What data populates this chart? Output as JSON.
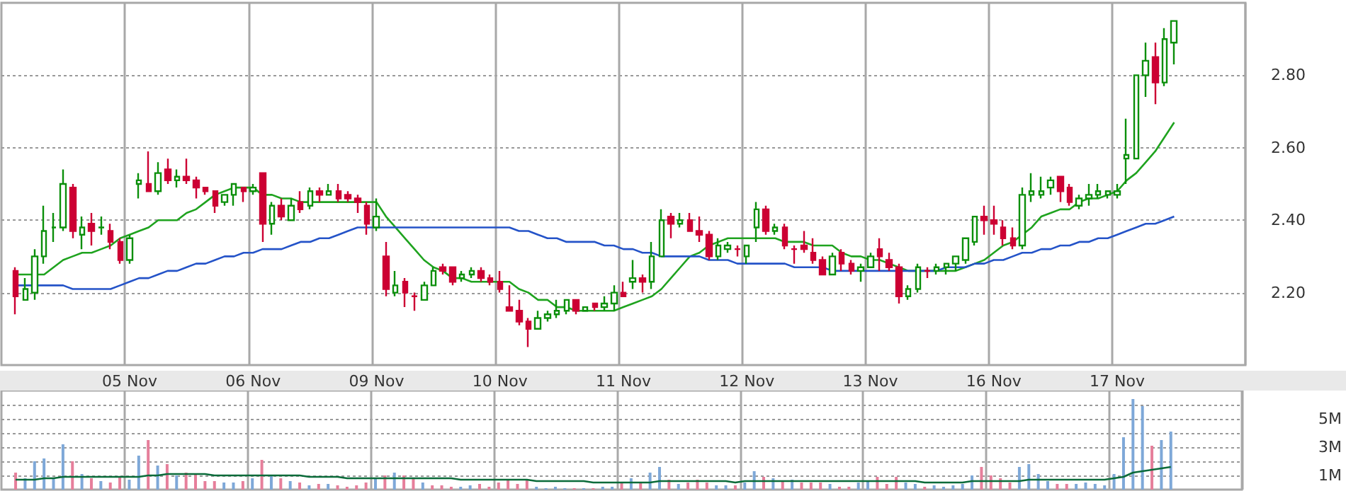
{
  "chart_data": [
    {
      "type": "candlestick",
      "categories": [
        null,
        null,
        null,
        null,
        null,
        null,
        null,
        null,
        null,
        null,
        null,
        null,
        null,
        "05 Nov",
        null,
        null,
        null,
        null,
        null,
        null,
        null,
        null,
        null,
        null,
        null,
        null,
        "06 Nov",
        null,
        null,
        null,
        null,
        null,
        null,
        null,
        null,
        null,
        null,
        null,
        null,
        "09 Nov",
        null,
        null,
        null,
        null,
        null,
        null,
        null,
        null,
        null,
        null,
        null,
        null,
        "10 Nov",
        null,
        null,
        null,
        null,
        null,
        null,
        null,
        null,
        null,
        null,
        null,
        null,
        "11 Nov",
        null,
        null,
        null,
        null,
        null,
        null,
        null,
        null,
        null,
        null,
        null,
        null,
        "12 Nov",
        null,
        null,
        null,
        null,
        null,
        null,
        null,
        null,
        null,
        null,
        null,
        null,
        "13 Nov",
        null,
        null,
        null,
        null,
        null,
        null,
        null,
        null,
        null,
        null,
        null,
        null,
        "16 Nov",
        null,
        null,
        null,
        null,
        null,
        null,
        null,
        null,
        null,
        null,
        null,
        null,
        "17 Nov",
        null,
        null,
        null,
        null,
        null,
        null,
        null,
        null,
        null,
        null,
        null,
        null,
        null
      ],
      "ohlc": [
        null,
        [
          2.26,
          2.27,
          2.14,
          2.19
        ],
        [
          2.18,
          2.24,
          2.18,
          2.21
        ],
        [
          2.2,
          2.32,
          2.18,
          2.3
        ],
        [
          2.3,
          2.44,
          2.28,
          2.37
        ],
        [
          2.38,
          2.42,
          2.34,
          2.38
        ],
        [
          2.38,
          2.54,
          2.37,
          2.5
        ],
        [
          2.49,
          2.5,
          2.35,
          2.37
        ],
        [
          2.36,
          2.41,
          2.32,
          2.38
        ],
        [
          2.39,
          2.42,
          2.33,
          2.37
        ],
        [
          2.38,
          2.41,
          2.36,
          2.38
        ],
        [
          2.37,
          2.39,
          2.32,
          2.34
        ],
        [
          2.34,
          2.35,
          2.28,
          2.29
        ],
        [
          2.29,
          2.36,
          2.28,
          2.35
        ],
        [
          2.5,
          2.53,
          2.46,
          2.51
        ],
        [
          2.5,
          2.59,
          2.48,
          2.48
        ],
        [
          2.48,
          2.56,
          2.47,
          2.53
        ],
        [
          2.54,
          2.57,
          2.5,
          2.51
        ],
        [
          2.51,
          2.54,
          2.49,
          2.52
        ],
        [
          2.52,
          2.57,
          2.5,
          2.51
        ],
        [
          2.51,
          2.52,
          2.46,
          2.49
        ],
        [
          2.49,
          2.49,
          2.47,
          2.48
        ],
        [
          2.48,
          2.48,
          2.42,
          2.44
        ],
        [
          2.45,
          2.47,
          2.44,
          2.47
        ],
        [
          2.47,
          2.5,
          2.44,
          2.5
        ],
        [
          2.49,
          2.49,
          2.45,
          2.48
        ],
        [
          2.48,
          2.5,
          2.47,
          2.49
        ],
        [
          2.53,
          2.53,
          2.34,
          2.39
        ],
        [
          2.39,
          2.45,
          2.36,
          2.44
        ],
        [
          2.44,
          2.46,
          2.4,
          2.41
        ],
        [
          2.4,
          2.46,
          2.4,
          2.44
        ],
        [
          2.45,
          2.48,
          2.42,
          2.43
        ],
        [
          2.44,
          2.49,
          2.43,
          2.48
        ],
        [
          2.48,
          2.49,
          2.45,
          2.47
        ],
        [
          2.47,
          2.5,
          2.47,
          2.48
        ],
        [
          2.48,
          2.5,
          2.45,
          2.46
        ],
        [
          2.47,
          2.48,
          2.45,
          2.46
        ],
        [
          2.46,
          2.47,
          2.42,
          2.45
        ],
        [
          2.44,
          2.45,
          2.36,
          2.39
        ],
        [
          2.38,
          2.46,
          2.37,
          2.41
        ],
        [
          2.3,
          2.34,
          2.19,
          2.21
        ],
        [
          2.2,
          2.26,
          2.19,
          2.22
        ],
        [
          2.23,
          2.24,
          2.16,
          2.2
        ],
        [
          2.19,
          2.2,
          2.15,
          2.19
        ],
        [
          2.18,
          2.23,
          2.18,
          2.22
        ],
        [
          2.22,
          2.27,
          2.22,
          2.26
        ],
        [
          2.27,
          2.28,
          2.25,
          2.26
        ],
        [
          2.27,
          2.27,
          2.22,
          2.23
        ],
        [
          2.24,
          2.26,
          2.23,
          2.25
        ],
        [
          2.25,
          2.27,
          2.24,
          2.26
        ],
        [
          2.26,
          2.27,
          2.23,
          2.24
        ],
        [
          2.24,
          2.25,
          2.22,
          2.23
        ],
        [
          2.23,
          2.26,
          2.2,
          2.21
        ],
        [
          2.16,
          2.22,
          2.15,
          2.15
        ],
        [
          2.15,
          2.18,
          2.11,
          2.12
        ],
        [
          2.12,
          2.13,
          2.05,
          2.1
        ],
        [
          2.1,
          2.15,
          2.1,
          2.13
        ],
        [
          2.13,
          2.15,
          2.12,
          2.14
        ],
        [
          2.14,
          2.18,
          2.13,
          2.15
        ],
        [
          2.15,
          2.18,
          2.14,
          2.18
        ],
        [
          2.18,
          2.18,
          2.14,
          2.15
        ],
        [
          2.15,
          2.16,
          2.15,
          2.16
        ],
        [
          2.17,
          2.17,
          2.15,
          2.16
        ],
        [
          2.16,
          2.19,
          2.15,
          2.17
        ],
        [
          2.17,
          2.22,
          2.15,
          2.2
        ],
        [
          2.2,
          2.23,
          2.19,
          2.19
        ],
        [
          2.23,
          2.29,
          2.21,
          2.24
        ],
        [
          2.24,
          2.25,
          2.2,
          2.23
        ],
        [
          2.23,
          2.34,
          2.21,
          2.3
        ],
        [
          2.3,
          2.43,
          2.3,
          2.4
        ],
        [
          2.41,
          2.42,
          2.35,
          2.39
        ],
        [
          2.39,
          2.42,
          2.38,
          2.4
        ],
        [
          2.4,
          2.42,
          2.37,
          2.37
        ],
        [
          2.37,
          2.41,
          2.34,
          2.36
        ],
        [
          2.36,
          2.37,
          2.29,
          2.3
        ],
        [
          2.3,
          2.35,
          2.29,
          2.33
        ],
        [
          2.32,
          2.34,
          2.31,
          2.33
        ],
        [
          2.32,
          2.33,
          2.3,
          2.32
        ],
        [
          2.3,
          2.33,
          2.28,
          2.33
        ],
        [
          2.38,
          2.45,
          2.34,
          2.43
        ],
        [
          2.43,
          2.44,
          2.36,
          2.37
        ],
        [
          2.37,
          2.39,
          2.36,
          2.38
        ],
        [
          2.38,
          2.39,
          2.32,
          2.33
        ],
        [
          2.32,
          2.33,
          2.28,
          2.32
        ],
        [
          2.33,
          2.37,
          2.31,
          2.32
        ],
        [
          2.31,
          2.35,
          2.28,
          2.29
        ],
        [
          2.29,
          2.3,
          2.25,
          2.25
        ],
        [
          2.25,
          2.31,
          2.25,
          2.3
        ],
        [
          2.31,
          2.32,
          2.26,
          2.28
        ],
        [
          2.28,
          2.29,
          2.25,
          2.26
        ],
        [
          2.26,
          2.28,
          2.23,
          2.27
        ],
        [
          2.27,
          2.31,
          2.27,
          2.3
        ],
        [
          2.32,
          2.35,
          2.26,
          2.3
        ],
        [
          2.29,
          2.31,
          2.26,
          2.27
        ],
        [
          2.27,
          2.28,
          2.17,
          2.19
        ],
        [
          2.19,
          2.22,
          2.18,
          2.21
        ],
        [
          2.21,
          2.28,
          2.2,
          2.27
        ],
        [
          2.26,
          2.27,
          2.24,
          2.26
        ],
        [
          2.26,
          2.28,
          2.25,
          2.27
        ],
        [
          2.27,
          2.28,
          2.25,
          2.28
        ],
        [
          2.28,
          2.3,
          2.26,
          2.3
        ],
        [
          2.29,
          2.35,
          2.28,
          2.35
        ],
        [
          2.34,
          2.41,
          2.33,
          2.41
        ],
        [
          2.41,
          2.44,
          2.36,
          2.4
        ],
        [
          2.4,
          2.44,
          2.36,
          2.39
        ],
        [
          2.38,
          2.4,
          2.33,
          2.35
        ],
        [
          2.35,
          2.38,
          2.32,
          2.33
        ],
        [
          2.33,
          2.49,
          2.32,
          2.47
        ],
        [
          2.47,
          2.53,
          2.45,
          2.48
        ],
        [
          2.47,
          2.52,
          2.46,
          2.48
        ],
        [
          2.49,
          2.52,
          2.47,
          2.51
        ],
        [
          2.52,
          2.52,
          2.45,
          2.48
        ],
        [
          2.49,
          2.5,
          2.44,
          2.45
        ],
        [
          2.44,
          2.47,
          2.43,
          2.46
        ],
        [
          2.46,
          2.5,
          2.44,
          2.47
        ],
        [
          2.47,
          2.5,
          2.46,
          2.48
        ],
        [
          2.47,
          2.48,
          2.46,
          2.48
        ],
        [
          2.47,
          2.5,
          2.46,
          2.48
        ],
        [
          2.57,
          2.68,
          2.5,
          2.58
        ],
        [
          2.57,
          2.8,
          2.57,
          2.8
        ],
        [
          2.8,
          2.89,
          2.74,
          2.84
        ],
        [
          2.85,
          2.89,
          2.72,
          2.78
        ],
        [
          2.78,
          2.93,
          2.77,
          2.9
        ],
        [
          2.89,
          2.95,
          2.83,
          2.95
        ],
        null,
        null,
        null,
        null,
        null,
        null,
        null
      ],
      "series": [
        {
          "type": "line",
          "color": "#1fa31f",
          "values": [
            null,
            2.25,
            2.25,
            2.25,
            2.25,
            2.27,
            2.29,
            2.3,
            2.31,
            2.31,
            2.32,
            2.33,
            2.35,
            2.36,
            2.37,
            2.38,
            2.4,
            2.4,
            2.4,
            2.42,
            2.43,
            2.45,
            2.47,
            2.48,
            2.49,
            2.49,
            2.49,
            2.47,
            2.47,
            2.46,
            2.46,
            2.45,
            2.45,
            2.45,
            2.45,
            2.45,
            2.45,
            2.45,
            2.45,
            2.45,
            2.41,
            2.38,
            2.35,
            2.32,
            2.29,
            2.27,
            2.26,
            2.24,
            2.24,
            2.23,
            2.23,
            2.23,
            2.23,
            2.23,
            2.21,
            2.2,
            2.18,
            2.18,
            2.16,
            2.16,
            2.15,
            2.15,
            2.15,
            2.15,
            2.15,
            2.16,
            2.17,
            2.18,
            2.19,
            2.21,
            2.24,
            2.27,
            2.3,
            2.31,
            2.33,
            2.34,
            2.35,
            2.35,
            2.35,
            2.35,
            2.35,
            2.35,
            2.34,
            2.34,
            2.34,
            2.33,
            2.33,
            2.33,
            2.31,
            2.3,
            2.3,
            2.29,
            2.29,
            2.28,
            2.27,
            2.26,
            2.26,
            2.26,
            2.26,
            2.26,
            2.26,
            2.27,
            2.28,
            2.29,
            2.31,
            2.33,
            2.34,
            2.36,
            2.38,
            2.41,
            2.42,
            2.43,
            2.43,
            2.45,
            2.46,
            2.46,
            2.47,
            2.48,
            2.51,
            2.53,
            2.56,
            2.59,
            2.63,
            2.67,
            null,
            null,
            null,
            null,
            null,
            null,
            null
          ]
        },
        {
          "type": "line",
          "color": "#2453c8",
          "values": [
            null,
            2.22,
            2.22,
            2.22,
            2.22,
            2.22,
            2.22,
            2.21,
            2.21,
            2.21,
            2.21,
            2.21,
            2.22,
            2.23,
            2.24,
            2.24,
            2.25,
            2.26,
            2.26,
            2.27,
            2.28,
            2.28,
            2.29,
            2.3,
            2.3,
            2.31,
            2.31,
            2.32,
            2.32,
            2.32,
            2.33,
            2.34,
            2.34,
            2.35,
            2.35,
            2.36,
            2.37,
            2.38,
            2.38,
            2.38,
            2.38,
            2.38,
            2.38,
            2.38,
            2.38,
            2.38,
            2.38,
            2.38,
            2.38,
            2.38,
            2.38,
            2.38,
            2.38,
            2.38,
            2.37,
            2.37,
            2.36,
            2.35,
            2.35,
            2.34,
            2.34,
            2.34,
            2.34,
            2.33,
            2.33,
            2.32,
            2.32,
            2.31,
            2.31,
            2.3,
            2.3,
            2.3,
            2.3,
            2.3,
            2.29,
            2.29,
            2.29,
            2.28,
            2.28,
            2.28,
            2.28,
            2.28,
            2.28,
            2.27,
            2.27,
            2.27,
            2.27,
            2.26,
            2.26,
            2.26,
            2.26,
            2.26,
            2.26,
            2.26,
            2.26,
            2.26,
            2.26,
            2.26,
            2.26,
            2.27,
            2.27,
            2.27,
            2.28,
            2.28,
            2.29,
            2.29,
            2.3,
            2.31,
            2.31,
            2.32,
            2.32,
            2.33,
            2.33,
            2.34,
            2.34,
            2.35,
            2.35,
            2.36,
            2.37,
            2.38,
            2.39,
            2.39,
            2.4,
            2.41,
            null,
            null,
            null,
            null,
            null,
            null,
            null
          ]
        }
      ],
      "ylim": [
        2.0,
        3.0
      ],
      "yticks": [
        {
          "value": 2.2,
          "label": "2.20"
        },
        {
          "value": 2.4,
          "label": "2.40"
        },
        {
          "value": 2.6,
          "label": "2.60"
        },
        {
          "value": 2.8,
          "label": "2.80"
        }
      ],
      "grid": true
    },
    {
      "type": "bar",
      "categories": [
        null,
        null,
        null,
        null,
        null,
        null,
        null,
        null,
        null,
        null,
        null,
        null,
        null,
        null,
        null,
        null,
        null,
        null,
        null,
        null,
        null,
        null,
        null,
        null,
        null,
        null,
        null,
        null,
        null,
        null,
        null,
        null,
        null,
        null,
        null,
        null,
        null,
        null,
        null,
        null,
        null,
        null,
        null,
        null,
        null,
        null,
        null,
        null,
        null,
        null,
        null,
        null,
        null,
        null,
        null,
        null,
        null,
        null,
        null,
        null,
        null,
        null,
        null,
        null,
        null,
        null,
        null,
        null,
        null,
        null,
        null,
        null,
        null,
        null,
        null,
        null,
        null,
        null,
        null,
        null,
        null,
        null,
        null,
        null,
        null,
        null,
        null,
        null,
        null,
        null,
        null,
        null,
        null,
        null,
        null,
        null,
        null,
        null,
        null,
        null,
        null,
        null,
        null,
        null,
        null,
        null,
        null,
        null,
        null,
        null,
        null,
        null,
        null,
        null,
        null,
        null,
        null,
        null,
        null,
        null,
        null,
        null,
        null,
        null,
        null,
        null,
        null,
        null,
        null,
        null,
        null
      ],
      "series": [
        {
          "type": "bar",
          "color": "#7ea8d8",
          "values": [
            null,
            null,
            0.8,
            2.0,
            2.2,
            0.8,
            3.2,
            null,
            1.1,
            null,
            0.6,
            null,
            null,
            0.7,
            2.4,
            null,
            1.7,
            null,
            1.0,
            null,
            null,
            null,
            null,
            0.5,
            0.5,
            null,
            0.8,
            null,
            1.0,
            null,
            0.6,
            null,
            0.3,
            null,
            0.4,
            null,
            null,
            null,
            null,
            0.8,
            null,
            1.2,
            null,
            null,
            0.5,
            null,
            null,
            null,
            0.2,
            0.3,
            null,
            null,
            null,
            null,
            null,
            null,
            0.2,
            0.1,
            0.2,
            0.1,
            null,
            0.1,
            null,
            0.2,
            0.2,
            null,
            0.8,
            null,
            1.2,
            1.6,
            null,
            0.4,
            null,
            null,
            null,
            0.3,
            0.3,
            null,
            0.5,
            1.3,
            null,
            0.8,
            null,
            0.7,
            null,
            null,
            null,
            0.4,
            null,
            null,
            0.5,
            0.6,
            null,
            null,
            null,
            0.5,
            0.4,
            null,
            0.3,
            0.2,
            0.3,
            0.4,
            1.0,
            null,
            null,
            null,
            null,
            1.6,
            1.8,
            1.1,
            0.6,
            null,
            null,
            0.4,
            0.5,
            0.4,
            0.3,
            1.1,
            3.7,
            6.4,
            5.9,
            null,
            3.5,
            4.1,
            null,
            null,
            null,
            null,
            null,
            null,
            null
          ]
        },
        {
          "type": "bar",
          "color": "#e67f9b",
          "values": [
            null,
            1.2,
            null,
            null,
            null,
            null,
            null,
            2.0,
            null,
            0.8,
            null,
            0.5,
            0.9,
            null,
            null,
            3.5,
            null,
            1.8,
            null,
            1.2,
            1.1,
            0.6,
            0.6,
            null,
            null,
            0.6,
            null,
            2.1,
            null,
            0.8,
            null,
            0.5,
            null,
            0.4,
            null,
            0.3,
            0.2,
            0.3,
            0.5,
            null,
            1.0,
            null,
            1.0,
            0.8,
            null,
            0.3,
            0.3,
            0.2,
            null,
            null,
            0.4,
            0.2,
            0.5,
            0.7,
            0.4,
            0.7,
            null,
            null,
            null,
            null,
            0.1,
            null,
            0.1,
            null,
            null,
            0.5,
            null,
            0.5,
            null,
            null,
            0.7,
            null,
            0.5,
            0.7,
            0.5,
            null,
            null,
            0.3,
            null,
            null,
            0.9,
            null,
            0.6,
            null,
            0.5,
            0.5,
            0.5,
            null,
            0.2,
            0.2,
            null,
            null,
            0.9,
            0.4,
            0.9,
            null,
            null,
            0.2,
            null,
            null,
            null,
            null,
            null,
            1.6,
            1.0,
            0.8,
            0.5,
            null,
            null,
            null,
            null,
            0.4,
            0.4,
            null,
            null,
            null,
            null,
            null,
            null,
            null,
            null,
            3.1,
            null,
            null,
            null,
            null,
            null,
            null,
            null,
            null,
            null
          ]
        },
        {
          "type": "line",
          "color": "#0b6b3a",
          "values": [
            null,
            0.7,
            0.7,
            0.7,
            0.8,
            0.8,
            0.9,
            0.9,
            0.9,
            0.9,
            0.9,
            0.9,
            0.9,
            0.9,
            0.9,
            1.0,
            1.0,
            1.1,
            1.1,
            1.1,
            1.1,
            1.1,
            1.0,
            1.0,
            1.0,
            1.0,
            1.0,
            1.0,
            1.0,
            1.0,
            1.0,
            1.0,
            0.9,
            0.9,
            0.9,
            0.9,
            0.8,
            0.8,
            0.8,
            0.8,
            0.8,
            0.8,
            0.8,
            0.8,
            0.8,
            0.8,
            0.8,
            0.8,
            0.7,
            0.7,
            0.7,
            0.7,
            0.7,
            0.7,
            0.7,
            0.7,
            0.6,
            0.6,
            0.6,
            0.6,
            0.6,
            0.6,
            0.5,
            0.5,
            0.5,
            0.5,
            0.5,
            0.5,
            0.5,
            0.6,
            0.6,
            0.6,
            0.6,
            0.6,
            0.6,
            0.6,
            0.6,
            0.5,
            0.6,
            0.6,
            0.6,
            0.6,
            0.6,
            0.6,
            0.6,
            0.6,
            0.6,
            0.6,
            0.6,
            0.6,
            0.6,
            0.6,
            0.6,
            0.6,
            0.6,
            0.6,
            0.6,
            0.5,
            0.5,
            0.5,
            0.5,
            0.5,
            0.6,
            0.6,
            0.6,
            0.6,
            0.6,
            0.6,
            0.7,
            0.7,
            0.7,
            0.7,
            0.7,
            0.7,
            0.7,
            0.7,
            0.7,
            0.8,
            0.9,
            1.2,
            1.3,
            1.4,
            1.5,
            1.6,
            null,
            null,
            null,
            null,
            null,
            null,
            null
          ]
        }
      ],
      "ylim": [
        0,
        7
      ],
      "yticks": [
        {
          "value": 1,
          "label": "1M"
        },
        {
          "value": 2,
          "label": null
        },
        {
          "value": 3,
          "label": "3M"
        },
        {
          "value": 4,
          "label": null
        },
        {
          "value": 5,
          "label": "5M"
        },
        {
          "value": 6,
          "label": null
        }
      ],
      "grid": true,
      "tick_labels": "y"
    }
  ]
}
